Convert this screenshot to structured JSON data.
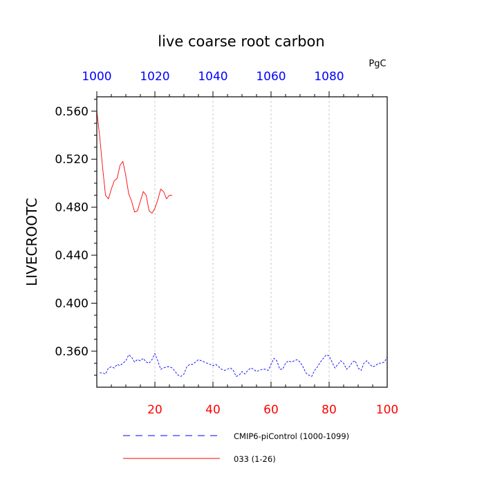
{
  "chart_data": {
    "type": "line",
    "title": "live coarse root carbon",
    "units": "PgC",
    "ylabel": "LIVECROOTC",
    "xlim": [
      0,
      100
    ],
    "ylim": [
      0.33,
      0.572
    ],
    "x_ticks_bottom": [
      20,
      40,
      60,
      80,
      100
    ],
    "x_ticks_top": [
      1000,
      1020,
      1040,
      1060,
      1080
    ],
    "y_ticks": [
      0.36,
      0.4,
      0.44,
      0.48,
      0.52,
      0.56
    ],
    "y_tick_labels": [
      "0.360",
      "0.400",
      "0.440",
      "0.480",
      "0.520",
      "0.560"
    ],
    "grid": "vertical-dashed",
    "colors": {
      "bottom_ticks": "#ff0000",
      "top_ticks": "#0000ff",
      "control": "#0000ff",
      "run": "#ff0000"
    },
    "series": [
      {
        "name": "CMIP6-piControl (1000-1099)",
        "style": "dashed",
        "x": [
          1,
          2,
          3,
          4,
          5,
          6,
          7,
          8,
          9,
          10,
          11,
          12,
          13,
          14,
          15,
          16,
          17,
          18,
          19,
          20,
          21,
          22,
          23,
          24,
          25,
          26,
          27,
          28,
          29,
          30,
          31,
          32,
          33,
          34,
          35,
          36,
          37,
          38,
          39,
          40,
          41,
          42,
          43,
          44,
          45,
          46,
          47,
          48,
          49,
          50,
          51,
          52,
          53,
          54,
          55,
          56,
          57,
          58,
          59,
          60,
          61,
          62,
          63,
          64,
          65,
          66,
          67,
          68,
          69,
          70,
          71,
          72,
          73,
          74,
          75,
          76,
          77,
          78,
          79,
          80,
          81,
          82,
          83,
          84,
          85,
          86,
          87,
          88,
          89,
          90,
          91,
          92,
          93,
          94,
          95,
          96,
          97,
          98,
          99,
          100
        ],
        "values": [
          0.342,
          0.342,
          0.341,
          0.346,
          0.347,
          0.346,
          0.349,
          0.348,
          0.35,
          0.352,
          0.357,
          0.355,
          0.351,
          0.353,
          0.352,
          0.354,
          0.351,
          0.35,
          0.353,
          0.358,
          0.352,
          0.345,
          0.346,
          0.347,
          0.347,
          0.346,
          0.343,
          0.34,
          0.339,
          0.341,
          0.347,
          0.349,
          0.349,
          0.351,
          0.353,
          0.352,
          0.351,
          0.35,
          0.349,
          0.348,
          0.349,
          0.347,
          0.345,
          0.344,
          0.345,
          0.346,
          0.344,
          0.339,
          0.34,
          0.343,
          0.341,
          0.344,
          0.346,
          0.345,
          0.343,
          0.344,
          0.345,
          0.345,
          0.344,
          0.349,
          0.354,
          0.352,
          0.345,
          0.345,
          0.35,
          0.352,
          0.351,
          0.352,
          0.353,
          0.351,
          0.347,
          0.342,
          0.34,
          0.339,
          0.344,
          0.347,
          0.351,
          0.354,
          0.357,
          0.356,
          0.351,
          0.346,
          0.349,
          0.352,
          0.35,
          0.345,
          0.347,
          0.351,
          0.352,
          0.346,
          0.344,
          0.35,
          0.352,
          0.349,
          0.347,
          0.348,
          0.35,
          0.35,
          0.351,
          0.355
        ]
      },
      {
        "name": "033 (1-26)",
        "style": "solid",
        "x": [
          0,
          1,
          2,
          3,
          4,
          5,
          6,
          7,
          8,
          9,
          10,
          11,
          12,
          13,
          14,
          15,
          16,
          17,
          18,
          19,
          20,
          21,
          22,
          23,
          24,
          25,
          26
        ],
        "values": [
          0.56,
          0.539,
          0.513,
          0.49,
          0.487,
          0.495,
          0.502,
          0.504,
          0.515,
          0.518,
          0.506,
          0.491,
          0.485,
          0.476,
          0.477,
          0.485,
          0.493,
          0.49,
          0.477,
          0.475,
          0.479,
          0.486,
          0.495,
          0.493,
          0.487,
          0.49,
          0.49
        ]
      }
    ]
  }
}
